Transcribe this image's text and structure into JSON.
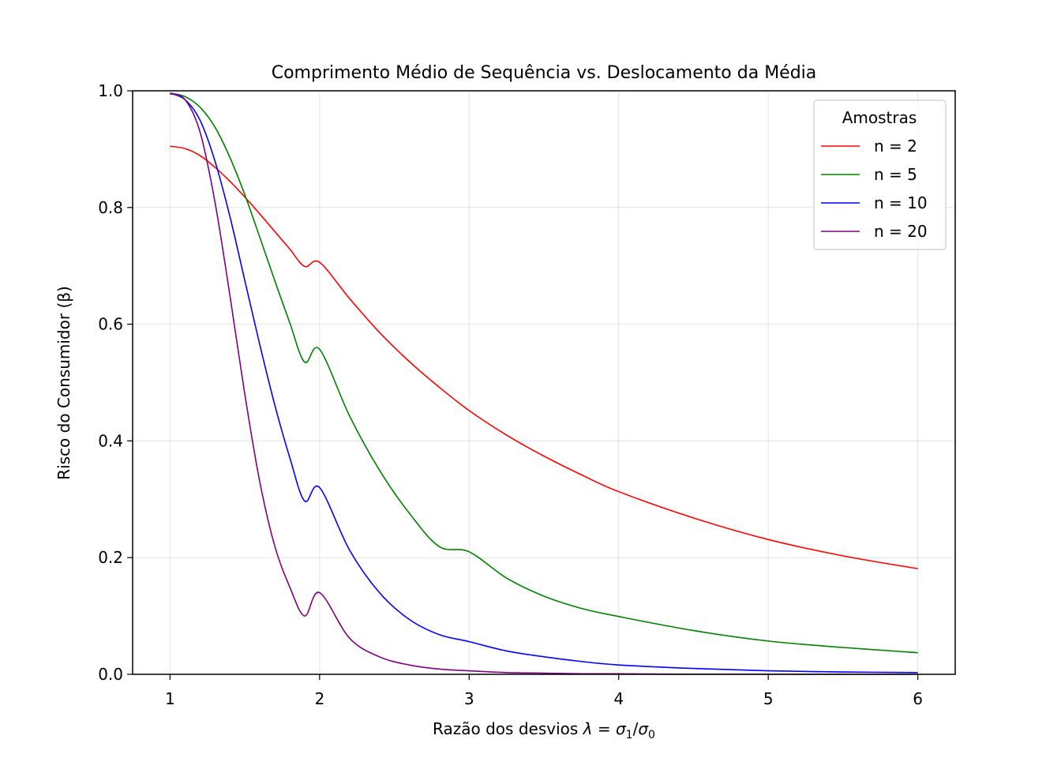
{
  "chart_data": {
    "type": "line",
    "title": "Comprimento Médio de Sequência vs. Deslocamento da Média",
    "xlabel": "Razão dos desvios λ = σ₁/σ₀",
    "xlabel_parts": {
      "prefix": "Razão dos desvios ",
      "lambda": "λ",
      "equals": " = ",
      "sigma": "σ",
      "sub1": "1",
      "slash": "/",
      "sub0": "0"
    },
    "ylabel": "Risco do Consumidor (β)",
    "xlim": [
      0.75,
      6.25
    ],
    "ylim": [
      0.0,
      1.0
    ],
    "xticks": [
      1,
      2,
      3,
      4,
      5,
      6
    ],
    "xtick_labels": [
      "1",
      "2",
      "3",
      "4",
      "5",
      "6"
    ],
    "yticks": [
      0.0,
      0.2,
      0.4,
      0.6,
      0.8,
      1.0
    ],
    "ytick_labels": [
      "0.0",
      "0.2",
      "0.4",
      "0.6",
      "0.8",
      "1.0"
    ],
    "grid": true,
    "legend": {
      "title": "Amostras",
      "position": "top-right"
    },
    "x": [
      1.0,
      1.1,
      1.2,
      1.3,
      1.4,
      1.5,
      1.6,
      1.7,
      1.8,
      1.9,
      2.0,
      2.2,
      2.4,
      2.6,
      2.8,
      3.0,
      3.25,
      3.5,
      3.75,
      4.0,
      4.5,
      5.0,
      5.5,
      6.0
    ],
    "series": [
      {
        "name": "n = 2",
        "color": "#ff0000",
        "values": [
          0.905,
          0.901,
          0.889,
          0.869,
          0.845,
          0.818,
          0.789,
          0.759,
          0.729,
          0.699,
          0.706,
          0.644,
          0.586,
          0.536,
          0.492,
          0.452,
          0.41,
          0.374,
          0.342,
          0.313,
          0.268,
          0.231,
          0.203,
          0.181
        ]
      },
      {
        "name": "n = 5",
        "color": "#008000",
        "values": [
          0.996,
          0.99,
          0.972,
          0.938,
          0.886,
          0.822,
          0.749,
          0.675,
          0.603,
          0.535,
          0.557,
          0.443,
          0.35,
          0.276,
          0.219,
          0.21,
          0.165,
          0.134,
          0.113,
          0.099,
          0.075,
          0.057,
          0.046,
          0.037
        ]
      },
      {
        "name": "n = 10",
        "color": "#0000ff",
        "values": [
          0.996,
          0.985,
          0.95,
          0.88,
          0.785,
          0.675,
          0.565,
          0.462,
          0.372,
          0.297,
          0.32,
          0.213,
          0.14,
          0.094,
          0.068,
          0.056,
          0.04,
          0.03,
          0.022,
          0.016,
          0.01,
          0.006,
          0.004,
          0.003
        ]
      },
      {
        "name": "n = 20",
        "color": "#800080",
        "values": [
          0.995,
          0.985,
          0.93,
          0.81,
          0.65,
          0.48,
          0.33,
          0.22,
          0.15,
          0.1,
          0.14,
          0.062,
          0.03,
          0.016,
          0.009,
          0.006,
          0.003,
          0.002,
          0.001,
          0.001,
          0.0,
          0.0,
          0.0,
          0.0
        ]
      }
    ]
  }
}
